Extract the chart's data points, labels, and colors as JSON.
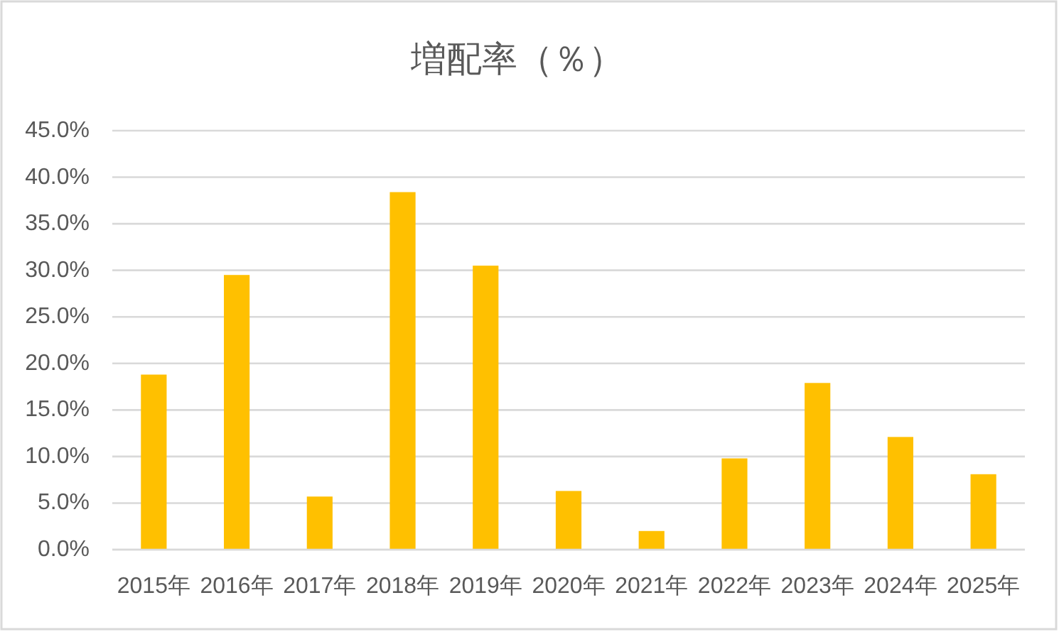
{
  "chart_data": {
    "type": "bar",
    "title": "増配率（％）",
    "categories": [
      "2015年",
      "2016年",
      "2017年",
      "2018年",
      "2019年",
      "2020年",
      "2021年",
      "2022年",
      "2023年",
      "2024年",
      "2025年"
    ],
    "values": [
      18.8,
      29.5,
      5.7,
      38.4,
      30.5,
      6.3,
      2.0,
      9.8,
      17.9,
      12.1,
      8.1
    ],
    "color": "#ffc000",
    "ylim": [
      0,
      45
    ],
    "yticks": [
      {
        "value": 0,
        "label": "0.0%"
      },
      {
        "value": 5,
        "label": "5.0%"
      },
      {
        "value": 10,
        "label": "10.0%"
      },
      {
        "value": 15,
        "label": "15.0%"
      },
      {
        "value": 20,
        "label": "20.0%"
      },
      {
        "value": 25,
        "label": "25.0%"
      },
      {
        "value": 30,
        "label": "30.0%"
      },
      {
        "value": 35,
        "label": "35.0%"
      },
      {
        "value": 40,
        "label": "40.0%"
      },
      {
        "value": 45,
        "label": "45.0%"
      }
    ],
    "grid": "y"
  }
}
